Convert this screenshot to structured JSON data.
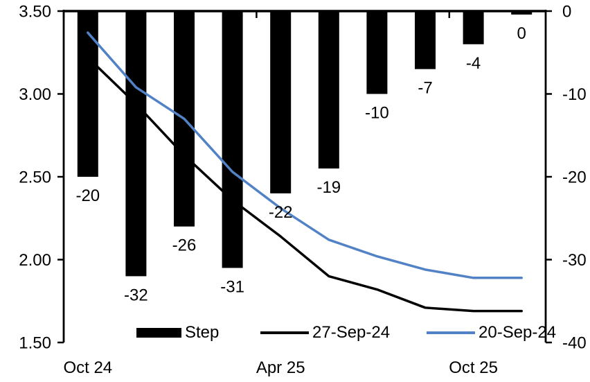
{
  "chart_data": {
    "type": "combo",
    "n_categories": 10,
    "x_axis": {
      "tick_labels": [
        {
          "label": "Oct 24",
          "category_index": 0
        },
        {
          "label": "Apr 25",
          "category_index": 4
        },
        {
          "label": "Oct 25",
          "category_index": 8
        }
      ],
      "boundary_tick_indices": [
        0,
        4,
        8
      ]
    },
    "left_axis": {
      "min": 1.5,
      "max": 3.5,
      "tick_labels": [
        "3.50",
        "3.00",
        "2.50",
        "2.00",
        "1.50"
      ],
      "tick_values": [
        3.5,
        3.0,
        2.5,
        2.0,
        1.5
      ]
    },
    "right_axis": {
      "min": -40,
      "max": 0,
      "tick_labels": [
        "0",
        "-10",
        "-20",
        "-30",
        "-40"
      ],
      "tick_values": [
        0,
        -10,
        -20,
        -30,
        -40
      ]
    },
    "series": [
      {
        "name": "Step",
        "type": "bar",
        "axis": "right",
        "color": "#000000",
        "values": [
          -20,
          -32,
          -26,
          -31,
          -22,
          -19,
          -10,
          -7,
          -4,
          0
        ],
        "data_labels": [
          "-20",
          "-32",
          "-26",
          "-31",
          "-22",
          "-19",
          "-10",
          "-7",
          "-4",
          "0"
        ]
      },
      {
        "name": "27-Sep-24",
        "type": "line",
        "axis": "left",
        "color": "#000000",
        "values": [
          3.22,
          2.94,
          2.63,
          2.36,
          2.14,
          1.9,
          1.82,
          1.71,
          1.69,
          1.69
        ]
      },
      {
        "name": "20-Sep-24",
        "type": "line",
        "axis": "left",
        "color": "#5282c6",
        "values": [
          3.37,
          3.04,
          2.85,
          2.53,
          2.31,
          2.12,
          2.02,
          1.94,
          1.89,
          1.89
        ]
      }
    ],
    "legend": {
      "position": "bottom",
      "items": [
        "Step",
        "27-Sep-24",
        "20-Sep-24"
      ]
    },
    "grid": false,
    "title": ""
  },
  "colors": {
    "background": "#ffffff",
    "axis": "#000000",
    "accent_blue": "#5282c6"
  }
}
